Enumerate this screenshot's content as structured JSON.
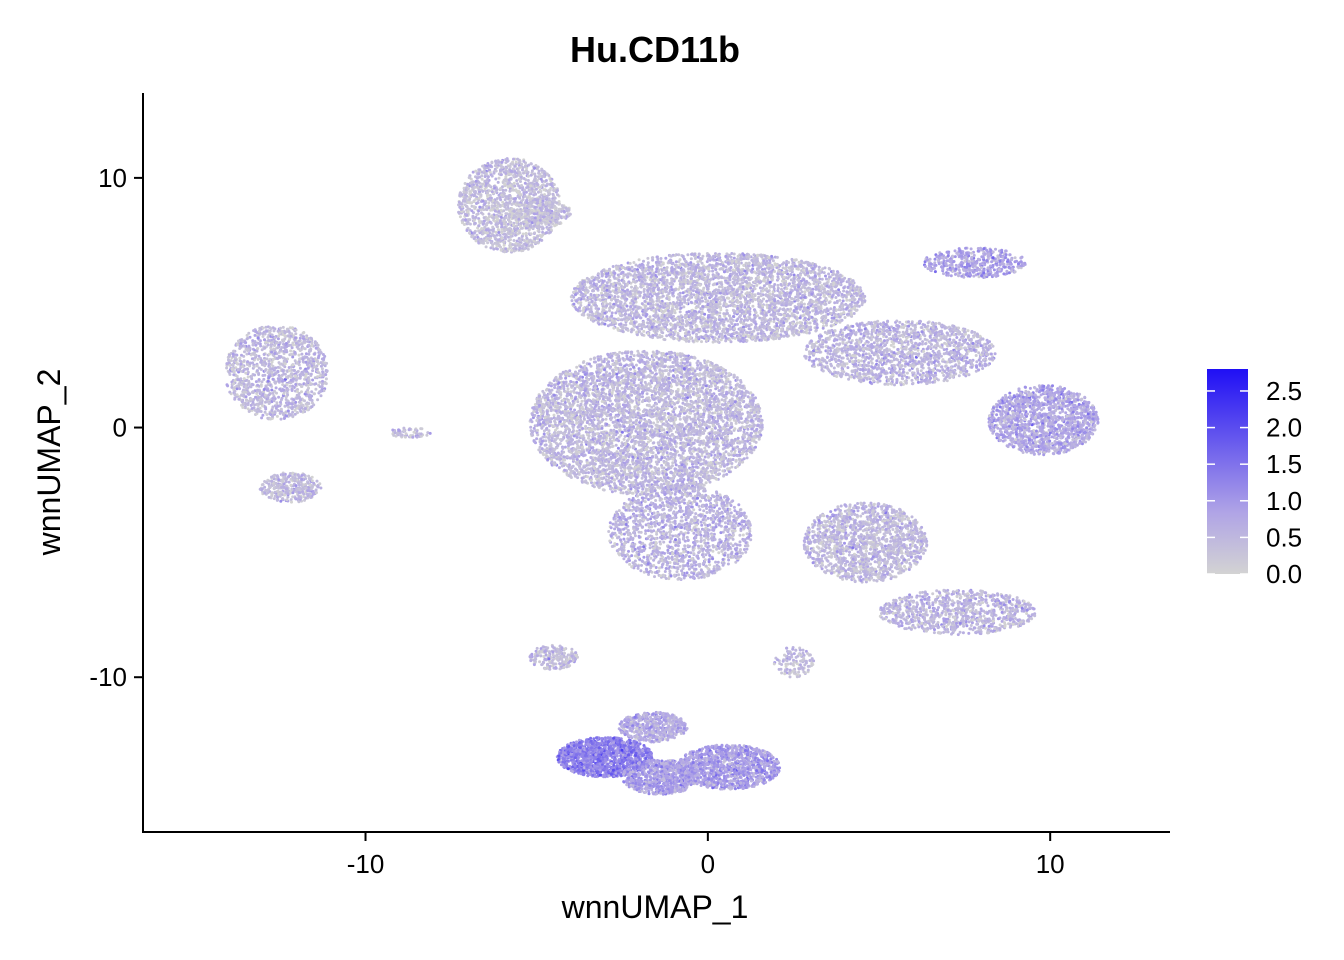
{
  "chart_data": {
    "type": "scatter",
    "title": "Hu.CD11b",
    "xlabel": "wnnUMAP_1",
    "ylabel": "wnnUMAP_2",
    "xlim": [
      -16.5,
      13.5
    ],
    "ylim": [
      -16.2,
      13.4
    ],
    "x_ticks": [
      -10,
      0,
      10
    ],
    "x_tick_labels": [
      "-10",
      "0",
      "10"
    ],
    "y_ticks": [
      -10,
      0,
      10
    ],
    "y_tick_labels": [
      "-10",
      "0",
      "10"
    ],
    "grid": false,
    "color_scale": {
      "low": "#d3d3d3",
      "high": "#1f0ff5",
      "min": 0.0,
      "max": 2.8,
      "breaks": [
        0.0,
        0.5,
        1.0,
        1.5,
        2.0,
        2.5
      ],
      "labels": [
        "0.0",
        "0.5",
        "1.0",
        "1.5",
        "2.0",
        "2.5"
      ]
    },
    "legend_position": "right",
    "clusters": [
      {
        "label": "top-left arm",
        "cx": -5.8,
        "cy": 8.9,
        "rx": 1.5,
        "ry": 1.9,
        "n": 1400,
        "mean_expr": 0.35
      },
      {
        "label": "top-left arm tail",
        "cx": -4.9,
        "cy": 8.6,
        "rx": 0.9,
        "ry": 0.6,
        "n": 250,
        "mean_expr": 0.35
      },
      {
        "label": "upper central body",
        "cx": 0.3,
        "cy": 5.2,
        "rx": 4.3,
        "ry": 1.8,
        "n": 3800,
        "mean_expr": 0.45
      },
      {
        "label": "right extension",
        "cx": 5.6,
        "cy": 3.0,
        "rx": 2.8,
        "ry": 1.3,
        "n": 1600,
        "mean_expr": 0.5
      },
      {
        "label": "right lobe",
        "cx": 9.8,
        "cy": 0.3,
        "rx": 1.6,
        "ry": 1.4,
        "n": 1400,
        "mean_expr": 0.75
      },
      {
        "label": "central mass",
        "cx": -1.8,
        "cy": 0.2,
        "rx": 3.4,
        "ry": 2.9,
        "n": 5000,
        "mean_expr": 0.45
      },
      {
        "label": "central mass lower",
        "cx": -0.8,
        "cy": -4.2,
        "rx": 2.1,
        "ry": 1.9,
        "n": 1500,
        "mean_expr": 0.55
      },
      {
        "label": "small top-right island",
        "cx": 7.8,
        "cy": 6.6,
        "rx": 1.5,
        "ry": 0.6,
        "n": 420,
        "mean_expr": 0.8
      },
      {
        "label": "left island upper",
        "cx": -12.6,
        "cy": 2.2,
        "rx": 1.5,
        "ry": 1.9,
        "n": 1200,
        "mean_expr": 0.45
      },
      {
        "label": "left island lower",
        "cx": -12.2,
        "cy": -2.4,
        "rx": 0.9,
        "ry": 0.6,
        "n": 320,
        "mean_expr": 0.45
      },
      {
        "label": "tiny fragment",
        "cx": -8.7,
        "cy": -0.2,
        "rx": 0.6,
        "ry": 0.2,
        "n": 60,
        "mean_expr": 0.4
      },
      {
        "label": "lower-right blob",
        "cx": 4.6,
        "cy": -4.6,
        "rx": 1.8,
        "ry": 1.6,
        "n": 1500,
        "mean_expr": 0.45
      },
      {
        "label": "lower-right arm",
        "cx": 7.3,
        "cy": -7.4,
        "rx": 2.3,
        "ry": 0.9,
        "n": 900,
        "mean_expr": 0.5
      },
      {
        "label": "bottom cluster left",
        "cx": -3.0,
        "cy": -13.2,
        "rx": 1.4,
        "ry": 0.8,
        "n": 1200,
        "mean_expr": 1.3
      },
      {
        "label": "bottom cluster middle",
        "cx": -1.4,
        "cy": -14.0,
        "rx": 1.1,
        "ry": 0.7,
        "n": 700,
        "mean_expr": 0.9
      },
      {
        "label": "bottom cluster right",
        "cx": 0.6,
        "cy": -13.6,
        "rx": 1.5,
        "ry": 0.9,
        "n": 1100,
        "mean_expr": 0.9
      },
      {
        "label": "bottom cluster top",
        "cx": -1.6,
        "cy": -12.0,
        "rx": 1.0,
        "ry": 0.6,
        "n": 500,
        "mean_expr": 0.7
      },
      {
        "label": "bottom left arm",
        "cx": -4.5,
        "cy": -9.2,
        "rx": 0.7,
        "ry": 0.5,
        "n": 200,
        "mean_expr": 0.4
      },
      {
        "label": "lower-right small arm",
        "cx": 2.5,
        "cy": -9.4,
        "rx": 0.6,
        "ry": 0.6,
        "n": 120,
        "mean_expr": 0.4
      }
    ]
  }
}
